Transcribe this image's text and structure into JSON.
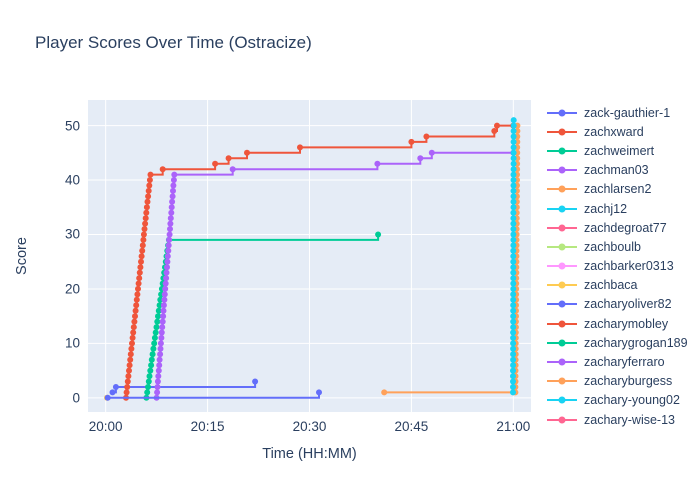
{
  "title": "Player Scores Over Time (Ostracize)",
  "colors": {
    "paper": "#ffffff",
    "plot_bg": "#e5ecf6",
    "grid": "#ffffff",
    "text": "#2a3f5f"
  },
  "chart_data": {
    "type": "line",
    "title": "Player Scores Over Time (Ostracize)",
    "xlabel": "Time (HH:MM)",
    "ylabel": "Score",
    "x_ticks": [
      "20:00",
      "20:15",
      "20:30",
      "20:45",
      "21:00"
    ],
    "x_tick_minutes": [
      0,
      15,
      30,
      45,
      60
    ],
    "y_ticks": [
      0,
      10,
      20,
      30,
      40,
      50
    ],
    "x_range_minutes": [
      -2.6,
      62.6
    ],
    "y_range": [
      -2.6,
      54.7
    ],
    "grid": true,
    "legend_position": "right",
    "marker_radius": 3,
    "line_width": 2,
    "series": [
      {
        "name": "zack-gauthier-1",
        "color": "#636efa",
        "segments": [
          {
            "type": "points",
            "pts": [
              [
                1,
                1
              ],
              [
                1.5,
                2
              ],
              [
                22,
                3
              ]
            ]
          }
        ]
      },
      {
        "name": "zachxward",
        "color": "#ef553b",
        "segments": [
          {
            "type": "ramp",
            "t0": 3.0,
            "s0": 0,
            "t1": 6.6,
            "s1": 41
          },
          {
            "type": "points",
            "pts": [
              [
                8.4,
                42
              ],
              [
                16.1,
                43
              ],
              [
                18.1,
                44
              ],
              [
                20.8,
                45
              ],
              [
                28.6,
                46
              ],
              [
                45.0,
                47
              ],
              [
                47.2,
                48
              ],
              [
                57.2,
                49
              ],
              [
                57.6,
                50
              ],
              [
                60,
                50
              ]
            ]
          }
        ]
      },
      {
        "name": "zachweimert",
        "color": "#00cc96",
        "segments": [
          {
            "type": "ramp",
            "t0": 6.0,
            "s0": 0,
            "t1": 9.3,
            "s1": 29
          },
          {
            "type": "points",
            "pts": [
              [
                40.1,
                30
              ]
            ]
          }
        ]
      },
      {
        "name": "zachman03",
        "color": "#ab63fa",
        "segments": [
          {
            "type": "ramp",
            "t0": 7.5,
            "s0": 0,
            "t1": 10.1,
            "s1": 41
          },
          {
            "type": "points",
            "pts": [
              [
                18.7,
                42
              ],
              [
                40.0,
                43
              ],
              [
                46.3,
                44
              ],
              [
                48.0,
                45
              ],
              [
                60,
                45
              ]
            ]
          }
        ]
      },
      {
        "name": "zachlarsen2",
        "color": "#ffa15a",
        "segments": [
          {
            "type": "points",
            "pts": [
              [
                41,
                1
              ],
              [
                60,
                1
              ]
            ]
          }
        ]
      },
      {
        "name": "zachj12",
        "color": "#19d3f3",
        "segments": []
      },
      {
        "name": "zachdegroat77",
        "color": "#ff6692",
        "segments": []
      },
      {
        "name": "zachboulb",
        "color": "#b6e880",
        "segments": []
      },
      {
        "name": "zachbarker0313",
        "color": "#ff97ff",
        "segments": []
      },
      {
        "name": "zachbaca",
        "color": "#fecb52",
        "segments": [
          {
            "type": "points",
            "pts": [
              [
                0.2,
                0
              ]
            ]
          }
        ]
      },
      {
        "name": "zacharyoliver82",
        "color": "#636efa",
        "segments": [
          {
            "type": "points",
            "pts": [
              [
                0.3,
                0
              ],
              [
                31.4,
                1
              ]
            ]
          }
        ]
      },
      {
        "name": "zacharymobley",
        "color": "#ef553b",
        "segments": []
      },
      {
        "name": "zacharygrogan189",
        "color": "#00cc96",
        "segments": []
      },
      {
        "name": "zacharyferraro",
        "color": "#ab63fa",
        "segments": []
      },
      {
        "name": "zacharyburgess",
        "color": "#ffa15a",
        "segments": [
          {
            "type": "ramp",
            "t0": 60.3,
            "s0": 1,
            "t1": 60.6,
            "s1": 50
          }
        ]
      },
      {
        "name": "zachary-young02",
        "color": "#19d3f3",
        "segments": [
          {
            "type": "ramp",
            "t0": 59.95,
            "s0": 1,
            "t1": 60.05,
            "s1": 51
          }
        ]
      },
      {
        "name": "zachary-wise-13",
        "color": "#ff6692",
        "segments": []
      }
    ]
  }
}
